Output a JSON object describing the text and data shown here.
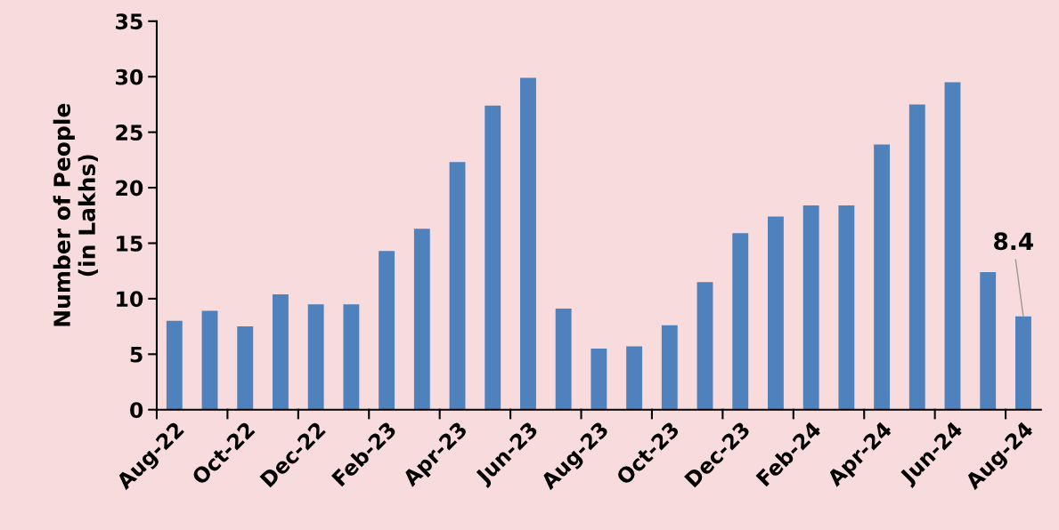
{
  "chart_data": {
    "type": "bar",
    "ylabel": "Number of People\n(in Lakhs)",
    "categories": [
      "Aug-22",
      null,
      "Oct-22",
      null,
      "Dec-22",
      null,
      "Feb-23",
      null,
      "Apr-23",
      null,
      "Jun-23",
      null,
      "Aug-23",
      null,
      "Oct-23",
      null,
      "Dec-23",
      null,
      "Feb-24",
      null,
      "Apr-24",
      null,
      "Jun-24",
      null,
      "Aug-24"
    ],
    "values": [
      8.0,
      8.9,
      7.5,
      10.4,
      9.5,
      9.5,
      14.3,
      16.3,
      22.3,
      27.4,
      29.9,
      9.1,
      5.5,
      5.7,
      7.6,
      11.5,
      15.9,
      17.4,
      18.4,
      18.4,
      23.9,
      27.5,
      29.5,
      12.4,
      8.4
    ],
    "value_labels": [
      null,
      null,
      null,
      null,
      null,
      null,
      null,
      null,
      null,
      null,
      null,
      null,
      null,
      null,
      null,
      null,
      null,
      null,
      null,
      null,
      null,
      null,
      null,
      null,
      "8.4"
    ],
    "color": "#4f81bd",
    "ylim": [
      0,
      35
    ],
    "yticks": [
      0,
      5,
      10,
      15,
      20,
      25,
      30,
      35
    ],
    "grid": false,
    "legend": false
  }
}
